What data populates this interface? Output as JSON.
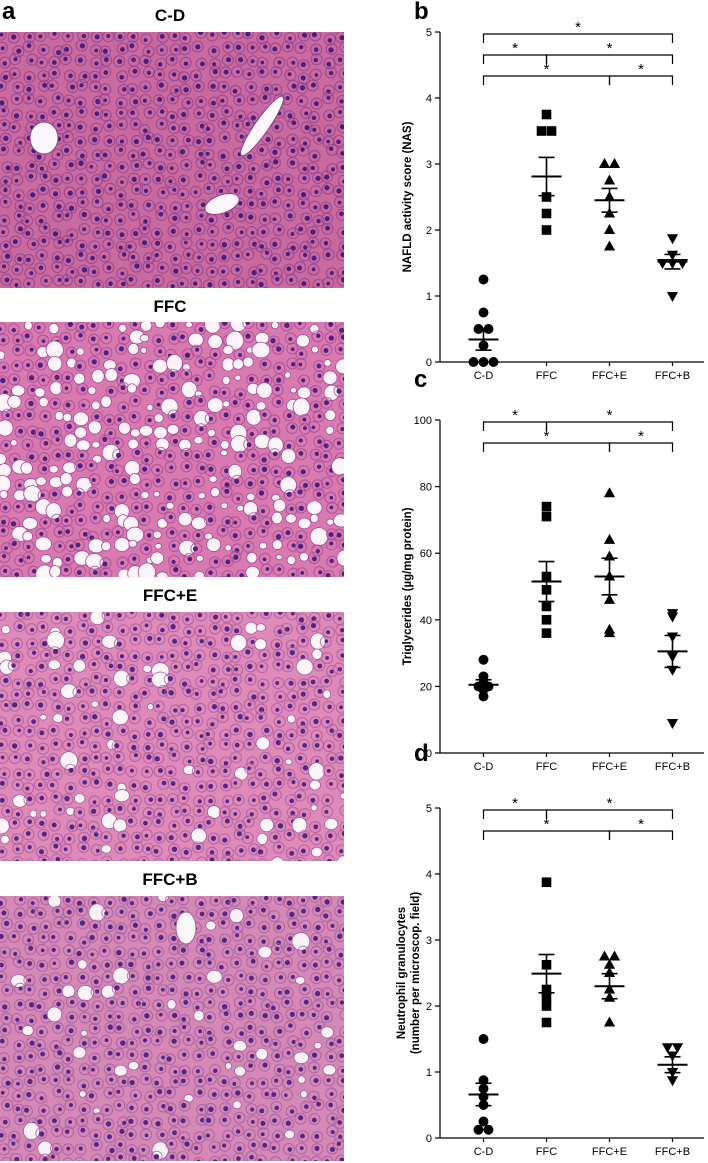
{
  "panel_labels": {
    "a": "a",
    "b": "b",
    "c": "c",
    "d": "d"
  },
  "micrographs": [
    {
      "title": "C-D",
      "colors": {
        "base": "#c86aa0",
        "cell": "#8e3f8c",
        "nucleus": "#4a1f7e",
        "vacuole": "#f4eaf2"
      },
      "vacuole_density": 0.0
    },
    {
      "title": "FFC",
      "colors": {
        "base": "#d87ab0",
        "cell": "#a24a96",
        "nucleus": "#4f2282",
        "vacuole": "#fbf3f8"
      },
      "vacuole_density": 0.35
    },
    {
      "title": "FFC+E",
      "colors": {
        "base": "#dd8ab8",
        "cell": "#a85a9e",
        "nucleus": "#552688",
        "vacuole": "#fbf5f8"
      },
      "vacuole_density": 0.12
    },
    {
      "title": "FFC+B",
      "colors": {
        "base": "#d488b6",
        "cell": "#a35c9e",
        "nucleus": "#552688",
        "vacuole": "#f9f1f6"
      },
      "vacuole_density": 0.06
    }
  ],
  "chart_data": [
    {
      "panel": "b",
      "type": "scatter",
      "categories": [
        "C-D",
        "FFC",
        "FFC+E",
        "FFC+B"
      ],
      "ylabel": "NAFLD activity score (NAS)",
      "ylim": [
        0,
        5
      ],
      "yticks": [
        0,
        1,
        2,
        3,
        4,
        5
      ],
      "markers": [
        "circle",
        "square",
        "triangle-up",
        "triangle-down"
      ],
      "points": [
        [
          1.25,
          0.75,
          0.5,
          0.5,
          0.25,
          0.0,
          0.0,
          0.0
        ],
        [
          3.75,
          3.5,
          3.5,
          2.5,
          2.25,
          2.0
        ],
        [
          3.0,
          3.0,
          2.75,
          2.5,
          2.25,
          2.0,
          1.75
        ],
        [
          1.875,
          1.625,
          1.5,
          1.5,
          1.5,
          1.0
        ]
      ],
      "mean": [
        0.34,
        2.81,
        2.45,
        1.52
      ],
      "sem": [
        0.16,
        0.29,
        0.18,
        0.11
      ],
      "significance": [
        {
          "from": 0,
          "to": 3,
          "label": "*"
        },
        {
          "from": 0,
          "to": 1,
          "label": "*"
        },
        {
          "from": 1,
          "to": 3,
          "label": "*"
        },
        {
          "from": 0,
          "to": 2,
          "label": "*"
        },
        {
          "from": 2,
          "to": 3,
          "label": "*"
        }
      ]
    },
    {
      "panel": "c",
      "type": "scatter",
      "categories": [
        "C-D",
        "FFC",
        "FFC+E",
        "FFC+B"
      ],
      "ylabel": "Triglycerides (µg/mg protein)",
      "ylim": [
        0,
        100
      ],
      "yticks": [
        0,
        20,
        40,
        60,
        80,
        100
      ],
      "markers": [
        "circle",
        "square",
        "triangle-up",
        "triangle-down"
      ],
      "points": [
        [
          28,
          23,
          21,
          20,
          20,
          19,
          17
        ],
        [
          74,
          71,
          53,
          49,
          44,
          40,
          36
        ],
        [
          78,
          64,
          59,
          53,
          46,
          37,
          36
        ],
        [
          42,
          41,
          35,
          29,
          25,
          9
        ]
      ],
      "mean": [
        20.5,
        51.5,
        53.0,
        30.5
      ],
      "sem": [
        1.5,
        6.0,
        5.5,
        4.8
      ],
      "significance": [
        {
          "from": 0,
          "to": 1,
          "label": "*"
        },
        {
          "from": 1,
          "to": 3,
          "label": "*"
        },
        {
          "from": 0,
          "to": 2,
          "label": "*"
        },
        {
          "from": 2,
          "to": 3,
          "label": "*"
        }
      ]
    },
    {
      "panel": "d",
      "type": "scatter",
      "categories": [
        "C-D",
        "FFC",
        "FFC+E",
        "FFC+B"
      ],
      "ylabel": "Neutrophil granulocytes",
      "ylabel2": "(number per microscop. field)",
      "ylim": [
        0,
        5
      ],
      "yticks": [
        0,
        1,
        2,
        3,
        4,
        5
      ],
      "markers": [
        "circle",
        "square",
        "triangle-up",
        "triangle-down"
      ],
      "points": [
        [
          1.5,
          0.875,
          0.75,
          0.625,
          0.5,
          0.25,
          0.125,
          0.125
        ],
        [
          3.875,
          2.625,
          2.25,
          2.125,
          2.0,
          1.75
        ],
        [
          2.75,
          2.75,
          2.625,
          2.5,
          2.25,
          2.125,
          1.75
        ],
        [
          1.375,
          1.375,
          1.25,
          1.0,
          0.875
        ]
      ],
      "mean": [
        0.66,
        2.49,
        2.3,
        1.11
      ],
      "sem": [
        0.17,
        0.29,
        0.19,
        0.12
      ],
      "significance": [
        {
          "from": 0,
          "to": 1,
          "label": "*"
        },
        {
          "from": 1,
          "to": 3,
          "label": "*"
        },
        {
          "from": 0,
          "to": 2,
          "label": "*"
        },
        {
          "from": 2,
          "to": 3,
          "label": "*"
        }
      ]
    }
  ]
}
